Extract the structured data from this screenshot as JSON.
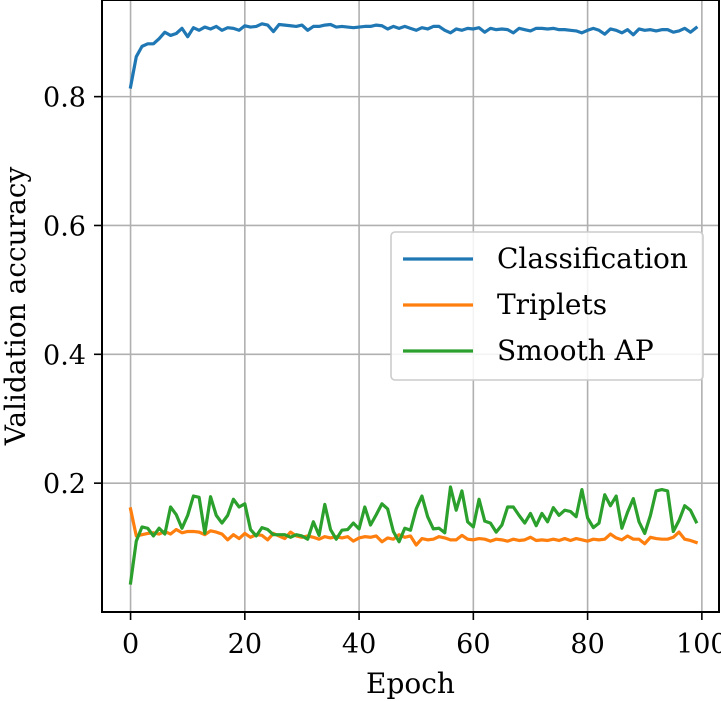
{
  "chart_data": {
    "type": "line",
    "title": "",
    "xlabel": "Epoch",
    "ylabel": "Validation accuracy",
    "xlim": [
      -5,
      103
    ],
    "ylim": [
      0.0,
      0.95
    ],
    "xticks": [
      0,
      20,
      40,
      60,
      80,
      100
    ],
    "xtick_labels": [
      "0",
      "20",
      "40",
      "60",
      "80",
      "100"
    ],
    "yticks": [
      0.2,
      0.4,
      0.6,
      0.8
    ],
    "ytick_labels": [
      "0.2",
      "0.4",
      "0.6",
      "0.8"
    ],
    "grid": true,
    "legend_position": "center-right",
    "series": [
      {
        "name": "Classification",
        "color": "#1f77b4",
        "values": [
          0.815,
          0.862,
          0.878,
          0.882,
          0.882,
          0.89,
          0.9,
          0.895,
          0.898,
          0.906,
          0.893,
          0.907,
          0.903,
          0.908,
          0.905,
          0.909,
          0.903,
          0.907,
          0.906,
          0.903,
          0.91,
          0.908,
          0.909,
          0.913,
          0.911,
          0.901,
          0.912,
          0.911,
          0.91,
          0.909,
          0.911,
          0.903,
          0.909,
          0.909,
          0.911,
          0.912,
          0.908,
          0.909,
          0.908,
          0.907,
          0.908,
          0.909,
          0.909,
          0.911,
          0.91,
          0.905,
          0.909,
          0.906,
          0.909,
          0.906,
          0.903,
          0.907,
          0.905,
          0.909,
          0.909,
          0.903,
          0.899,
          0.905,
          0.903,
          0.906,
          0.905,
          0.907,
          0.9,
          0.906,
          0.904,
          0.905,
          0.904,
          0.899,
          0.906,
          0.904,
          0.902,
          0.906,
          0.906,
          0.905,
          0.906,
          0.904,
          0.904,
          0.903,
          0.902,
          0.899,
          0.903,
          0.906,
          0.903,
          0.897,
          0.905,
          0.903,
          0.899,
          0.904,
          0.896,
          0.905,
          0.903,
          0.904,
          0.902,
          0.904,
          0.904,
          0.9,
          0.902,
          0.906,
          0.9,
          0.907
        ]
      },
      {
        "name": "Triplets",
        "color": "#ff7f0e",
        "values": [
          0.16,
          0.118,
          0.12,
          0.122,
          0.123,
          0.121,
          0.125,
          0.121,
          0.128,
          0.123,
          0.125,
          0.125,
          0.124,
          0.12,
          0.126,
          0.124,
          0.121,
          0.112,
          0.12,
          0.114,
          0.122,
          0.116,
          0.12,
          0.119,
          0.112,
          0.122,
          0.118,
          0.114,
          0.124,
          0.118,
          0.116,
          0.118,
          0.116,
          0.113,
          0.117,
          0.115,
          0.117,
          0.115,
          0.117,
          0.11,
          0.115,
          0.117,
          0.116,
          0.118,
          0.109,
          0.115,
          0.113,
          0.12,
          0.116,
          0.118,
          0.104,
          0.114,
          0.112,
          0.113,
          0.117,
          0.115,
          0.112,
          0.112,
          0.119,
          0.113,
          0.112,
          0.114,
          0.113,
          0.11,
          0.113,
          0.112,
          0.11,
          0.113,
          0.111,
          0.112,
          0.116,
          0.111,
          0.112,
          0.111,
          0.113,
          0.111,
          0.114,
          0.111,
          0.114,
          0.112,
          0.11,
          0.113,
          0.112,
          0.113,
          0.121,
          0.115,
          0.112,
          0.118,
          0.113,
          0.113,
          0.106,
          0.116,
          0.114,
          0.113,
          0.113,
          0.116,
          0.124,
          0.113,
          0.111,
          0.108
        ]
      },
      {
        "name": "Smooth AP",
        "color": "#2ca02c",
        "values": [
          0.045,
          0.11,
          0.132,
          0.13,
          0.118,
          0.13,
          0.121,
          0.163,
          0.151,
          0.13,
          0.15,
          0.18,
          0.178,
          0.122,
          0.179,
          0.15,
          0.138,
          0.15,
          0.175,
          0.163,
          0.168,
          0.128,
          0.118,
          0.131,
          0.128,
          0.12,
          0.12,
          0.12,
          0.116,
          0.12,
          0.118,
          0.113,
          0.14,
          0.119,
          0.167,
          0.128,
          0.113,
          0.127,
          0.128,
          0.138,
          0.129,
          0.163,
          0.135,
          0.151,
          0.168,
          0.16,
          0.125,
          0.109,
          0.13,
          0.127,
          0.16,
          0.18,
          0.148,
          0.129,
          0.13,
          0.123,
          0.194,
          0.158,
          0.188,
          0.14,
          0.132,
          0.175,
          0.141,
          0.138,
          0.124,
          0.135,
          0.163,
          0.163,
          0.15,
          0.138,
          0.153,
          0.134,
          0.153,
          0.14,
          0.162,
          0.15,
          0.158,
          0.156,
          0.148,
          0.19,
          0.146,
          0.131,
          0.138,
          0.182,
          0.165,
          0.18,
          0.13,
          0.155,
          0.176,
          0.14,
          0.122,
          0.15,
          0.188,
          0.19,
          0.188,
          0.125,
          0.142,
          0.165,
          0.158,
          0.14
        ]
      }
    ]
  }
}
